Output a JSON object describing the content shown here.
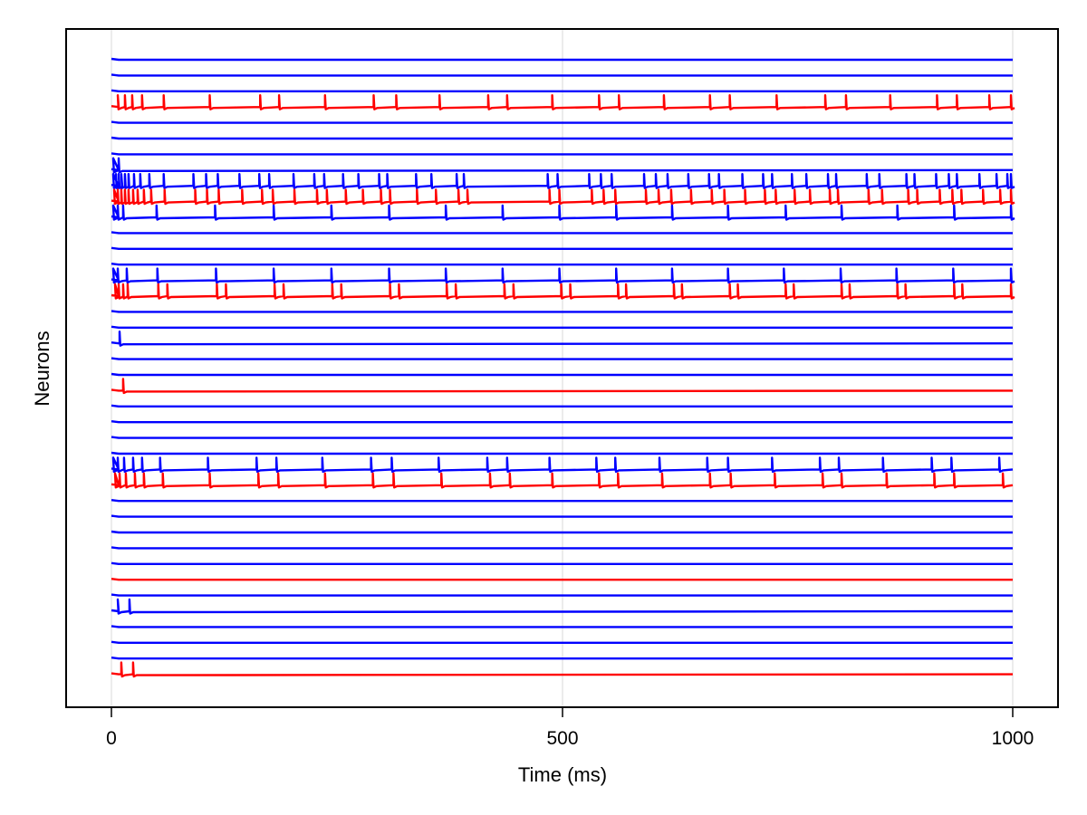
{
  "chart_data": {
    "type": "line",
    "title": "",
    "xlabel": "Time (ms)",
    "ylabel": "Neurons",
    "xlim": [
      0,
      1000
    ],
    "xticks": [
      0,
      500,
      1000
    ],
    "xtick_labels": [
      "0",
      "500",
      "1000"
    ],
    "yticks": [],
    "grid": "vertical gridlines at x ticks",
    "legend": "none",
    "colors": {
      "excitatory": "#0000ff",
      "inhibitory": "#ff0000",
      "frame": "#000000",
      "grid": "#e5e5e5"
    },
    "series_description": "Stacked membrane-potential traces of 40 neurons (top to bottom); spikes drawn as short upward deflections",
    "traces": [
      {
        "index": 1,
        "color": "blue",
        "spikes_ms": []
      },
      {
        "index": 2,
        "color": "blue",
        "spikes_ms": []
      },
      {
        "index": 3,
        "color": "blue",
        "spikes_ms": []
      },
      {
        "index": 4,
        "color": "red",
        "spikes_ms": [
          7,
          15,
          23,
          34,
          58,
          109,
          165,
          186,
          237,
          291,
          316,
          364,
          418,
          439,
          489,
          541,
          563,
          613,
          664,
          686,
          738,
          792,
          815,
          864,
          916,
          938,
          974,
          998
        ]
      },
      {
        "index": 5,
        "color": "blue",
        "spikes_ms": []
      },
      {
        "index": 6,
        "color": "blue",
        "spikes_ms": []
      },
      {
        "index": 7,
        "color": "blue",
        "spikes_ms": []
      },
      {
        "index": 8,
        "color": "blue",
        "spikes_ms": [
          2,
          8
        ]
      },
      {
        "index": 9,
        "color": "blue",
        "spikes_ms": [
          2,
          5,
          8,
          11,
          15,
          19,
          25,
          32,
          42,
          58,
          91,
          105,
          118,
          142,
          164,
          175,
          202,
          225,
          236,
          257,
          274,
          297,
          306,
          338,
          355,
          383,
          391,
          484,
          495,
          530,
          543,
          555,
          591,
          604,
          617,
          640,
          663,
          674,
          700,
          723,
          733,
          755,
          771,
          795,
          804,
          838,
          852,
          882,
          891,
          915,
          929,
          938,
          963,
          982,
          994,
          998
        ]
      },
      {
        "index": 10,
        "color": "red",
        "spikes_ms": [
          3,
          7,
          11,
          15,
          19,
          24,
          29,
          36,
          44,
          59,
          93,
          106,
          119,
          145,
          167,
          179,
          203,
          228,
          239,
          260,
          279,
          299,
          309,
          339,
          360,
          385,
          395,
          486,
          497,
          533,
          546,
          559,
          593,
          607,
          621,
          643,
          666,
          680,
          703,
          725,
          737,
          758,
          775,
          797,
          806,
          840,
          855,
          884,
          894,
          919,
          933,
          943,
          967,
          986,
          998
        ]
      },
      {
        "index": 11,
        "color": "blue",
        "spikes_ms": [
          2,
          7,
          13,
          50,
          115,
          180,
          244,
          308,
          371,
          434,
          497,
          560,
          622,
          684,
          748,
          810,
          872,
          935,
          998
        ]
      },
      {
        "index": 12,
        "color": "blue",
        "spikes_ms": []
      },
      {
        "index": 13,
        "color": "blue",
        "spikes_ms": []
      },
      {
        "index": 14,
        "color": "blue",
        "spikes_ms": []
      },
      {
        "index": 15,
        "color": "blue",
        "spikes_ms": [
          2,
          7,
          17,
          51,
          116,
          180,
          244,
          308,
          371,
          434,
          497,
          560,
          622,
          684,
          746,
          809,
          871,
          934,
          998
        ]
      },
      {
        "index": 16,
        "color": "red",
        "spikes_ms": [
          4,
          8,
          13,
          18,
          52,
          62,
          117,
          127,
          181,
          191,
          245,
          255,
          309,
          319,
          372,
          382,
          436,
          446,
          499,
          509,
          562,
          571,
          624,
          633,
          686,
          695,
          748,
          757,
          810,
          819,
          872,
          881,
          935,
          944,
          998
        ]
      },
      {
        "index": 17,
        "color": "blue",
        "spikes_ms": []
      },
      {
        "index": 18,
        "color": "blue",
        "spikes_ms": []
      },
      {
        "index": 19,
        "color": "blue",
        "spikes_ms": [
          9
        ]
      },
      {
        "index": 20,
        "color": "blue",
        "spikes_ms": []
      },
      {
        "index": 21,
        "color": "blue",
        "spikes_ms": []
      },
      {
        "index": 22,
        "color": "red",
        "spikes_ms": [
          13
        ]
      },
      {
        "index": 23,
        "color": "blue",
        "spikes_ms": []
      },
      {
        "index": 24,
        "color": "blue",
        "spikes_ms": []
      },
      {
        "index": 25,
        "color": "blue",
        "spikes_ms": []
      },
      {
        "index": 26,
        "color": "blue",
        "spikes_ms": []
      },
      {
        "index": 27,
        "color": "blue",
        "spikes_ms": [
          2,
          7,
          14,
          24,
          34,
          54,
          107,
          161,
          183,
          234,
          288,
          311,
          363,
          417,
          439,
          486,
          538,
          559,
          608,
          661,
          684,
          733,
          786,
          807,
          856,
          910,
          932,
          985
        ]
      },
      {
        "index": 28,
        "color": "red",
        "spikes_ms": [
          4,
          9,
          16,
          26,
          36,
          57,
          109,
          163,
          185,
          237,
          290,
          313,
          366,
          420,
          442,
          489,
          541,
          562,
          611,
          664,
          687,
          736,
          789,
          810,
          860,
          913,
          935,
          989
        ]
      },
      {
        "index": 29,
        "color": "blue",
        "spikes_ms": []
      },
      {
        "index": 30,
        "color": "blue",
        "spikes_ms": []
      },
      {
        "index": 31,
        "color": "blue",
        "spikes_ms": []
      },
      {
        "index": 32,
        "color": "blue",
        "spikes_ms": []
      },
      {
        "index": 33,
        "color": "blue",
        "spikes_ms": []
      },
      {
        "index": 34,
        "color": "red",
        "spikes_ms": []
      },
      {
        "index": 35,
        "color": "blue",
        "spikes_ms": []
      },
      {
        "index": 36,
        "color": "blue",
        "spikes_ms": [
          7,
          20
        ]
      },
      {
        "index": 37,
        "color": "blue",
        "spikes_ms": []
      },
      {
        "index": 38,
        "color": "blue",
        "spikes_ms": []
      },
      {
        "index": 39,
        "color": "blue",
        "spikes_ms": []
      },
      {
        "index": 40,
        "color": "red",
        "spikes_ms": [
          11,
          24
        ]
      }
    ]
  },
  "axes": {
    "xlabel": "Time (ms)",
    "ylabel": "Neurons",
    "xtick_0": "0",
    "xtick_500": "500",
    "xtick_1000": "1000"
  }
}
